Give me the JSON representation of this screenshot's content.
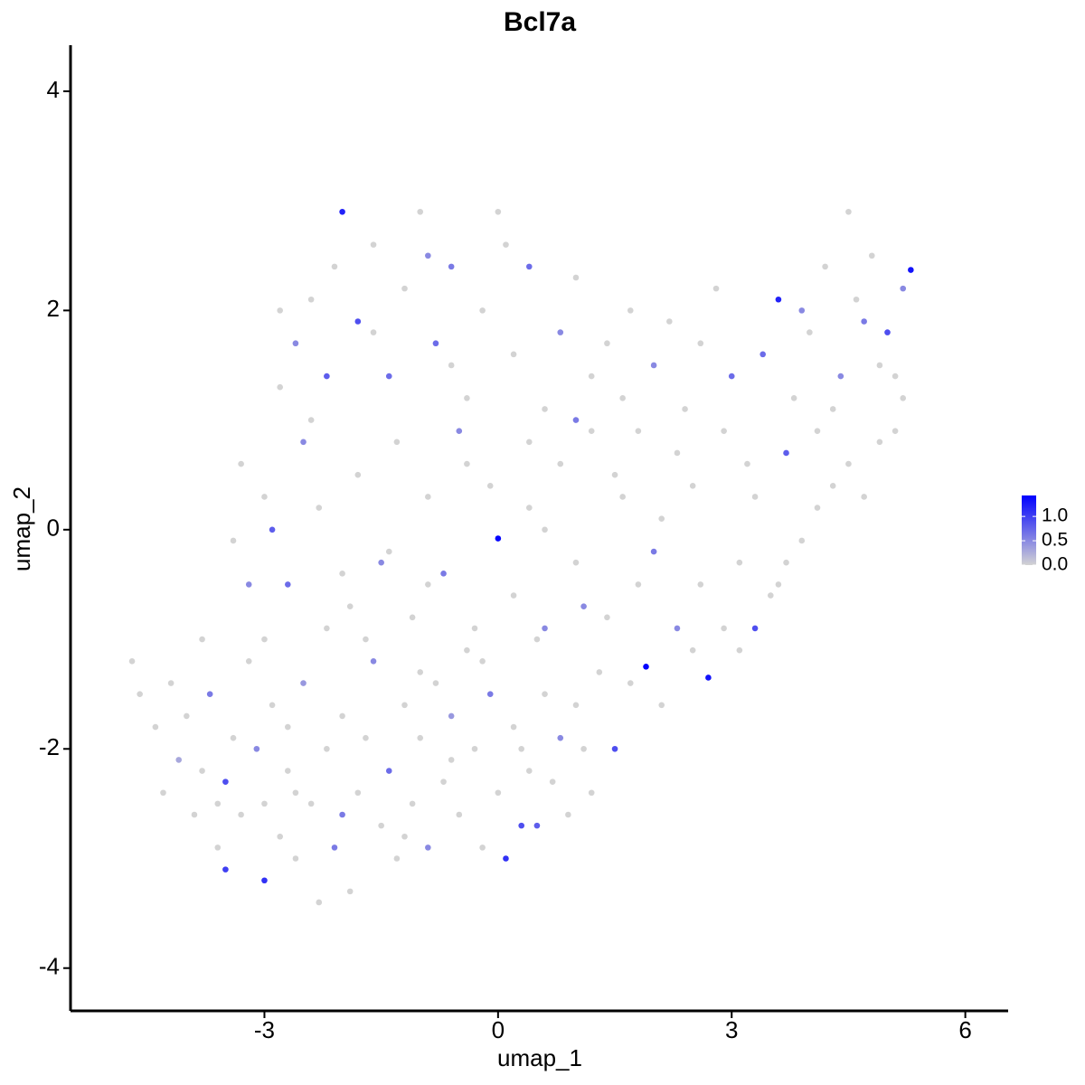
{
  "chart_data": {
    "type": "scatter",
    "title": "Bcl7a",
    "x_label": "umap_1",
    "y_label": "umap_2",
    "xlim": [
      -5.49,
      6.55
    ],
    "ylim": [
      -4.39,
      4.42
    ],
    "xticks": [
      -3,
      0,
      3,
      6
    ],
    "yticks": [
      -4,
      -2,
      0,
      2,
      4
    ],
    "colorbar": {
      "lim": [
        0,
        1.43
      ],
      "low": "#d3d3d3",
      "high": "#0000ff",
      "ticks": [
        {
          "value": 0,
          "label": "0.0"
        },
        {
          "value": 0.5,
          "label": "0.5"
        },
        {
          "value": 1,
          "label": "1.0"
        }
      ]
    },
    "x": [
      -4.7,
      -4.6,
      -4.4,
      -4.2,
      -4.1,
      -4.0,
      -3.9,
      -3.8,
      -3.7,
      -3.6,
      -3.5,
      -3.5,
      -3.4,
      -3.3,
      -3.2,
      -3.1,
      -3.0,
      -3.0,
      -2.9,
      -2.8,
      -2.7,
      -2.6,
      -2.5,
      -2.4,
      -2.3,
      -2.2,
      -2.1,
      -2.0,
      -1.9,
      -1.8,
      -1.7,
      -1.6,
      -1.5,
      -1.4,
      -1.3,
      -1.2,
      -1.1,
      -1.0,
      -0.9,
      -0.8,
      -0.7,
      -0.6,
      -0.5,
      -0.4,
      -0.3,
      -0.2,
      -0.1,
      0.0,
      0.1,
      0.2,
      0.3,
      0.4,
      0.5,
      0.6,
      0.7,
      0.8,
      0.9,
      1.0,
      1.1,
      1.3,
      1.5,
      1.7,
      1.9,
      2.1,
      2.3,
      2.5,
      2.7,
      2.9,
      3.1,
      3.3,
      3.5,
      3.7,
      3.9,
      4.1,
      4.3,
      4.5,
      4.7,
      4.9,
      5.1,
      5.2,
      -3.2,
      -3.4,
      -3.0,
      -2.9,
      -2.7,
      -2.5,
      -2.8,
      -2.6,
      -2.4,
      -2.2,
      -2.1,
      -2.0,
      -1.8,
      -1.6,
      -1.4,
      -1.2,
      -1.0,
      -0.8,
      -0.6,
      -0.4,
      -0.2,
      0.0,
      0.2,
      0.4,
      0.6,
      0.8,
      1.0,
      1.2,
      -2.3,
      -2.0,
      -1.8,
      -1.5,
      -1.3,
      -1.1,
      -0.9,
      -0.7,
      -0.5,
      -0.3,
      -0.1,
      0.0,
      0.2,
      0.4,
      0.6,
      0.8,
      1.0,
      1.2,
      1.4,
      1.6,
      1.8,
      2.0,
      -1.7,
      -1.0,
      -0.2,
      0.5,
      1.1,
      -2.2,
      -2.7,
      -3.8,
      -1.9,
      1.4,
      1.6,
      1.8,
      2.0,
      2.2,
      2.4,
      2.6,
      2.8,
      3.0,
      3.2,
      3.4,
      3.6,
      3.8,
      4.0,
      4.2,
      4.4,
      4.5,
      4.6,
      4.8,
      5.0,
      5.2,
      5.3,
      4.9,
      4.1,
      3.7,
      3.3,
      2.9,
      2.5,
      2.1,
      3.1,
      3.6,
      4.3,
      4.7,
      3.9,
      5.1,
      -2.6,
      -3.6,
      -2.0,
      -1.2,
      -0.6,
      0.3,
      1.2,
      -4.3,
      -3.0,
      -1.4,
      -0.4,
      0.6,
      1.5,
      -2.4,
      -1.6,
      -0.6,
      0.4,
      1.0,
      -3.3,
      -0.9,
      2.6,
      2.3,
      1.7,
      0.1,
      -0.9,
      -2.8
    ],
    "values": [
      -1.2,
      -1.5,
      -1.8,
      -1.4,
      -2.1,
      -1.7,
      -2.6,
      -2.2,
      -1.5,
      -2.9,
      -2.3,
      -3.1,
      -1.9,
      -2.6,
      -1.2,
      -2.0,
      -3.2,
      -2.5,
      -1.6,
      -2.8,
      -2.2,
      -3.0,
      -1.4,
      -2.5,
      -3.4,
      -2.0,
      -2.9,
      -1.7,
      -3.3,
      -2.4,
      -1.9,
      -1.2,
      -2.7,
      -2.2,
      -3.0,
      -1.6,
      -2.5,
      -1.9,
      -2.9,
      -1.4,
      -2.3,
      -1.7,
      -2.6,
      -1.1,
      -2.0,
      -2.9,
      -1.5,
      -2.4,
      -3.0,
      -1.8,
      -2.7,
      -2.2,
      -2.7,
      -1.5,
      -2.3,
      -1.9,
      -2.6,
      -1.6,
      -2.0,
      -1.3,
      -2.0,
      -1.4,
      -1.25,
      -1.6,
      -0.9,
      -1.1,
      -1.35,
      -0.9,
      -1.1,
      -0.9,
      -0.6,
      -0.3,
      -0.1,
      0.2,
      0.4,
      0.6,
      0.3,
      0.8,
      0.9,
      1.2,
      -0.5,
      -0.1,
      0.3,
      0.0,
      -0.5,
      0.8,
      1.3,
      1.7,
      2.1,
      1.4,
      2.4,
      2.9,
      1.9,
      2.6,
      1.4,
      2.2,
      2.9,
      1.7,
      2.4,
      1.2,
      2.0,
      2.9,
      1.6,
      2.4,
      1.1,
      1.8,
      2.3,
      1.4,
      0.2,
      -0.4,
      0.5,
      -0.3,
      0.8,
      -0.8,
      0.3,
      -0.4,
      0.9,
      -0.9,
      0.4,
      -0.08,
      -0.6,
      0.2,
      -0.9,
      0.6,
      -0.3,
      0.9,
      -0.8,
      0.3,
      -0.5,
      -0.2,
      -1.0,
      -1.3,
      -1.2,
      -1.0,
      -0.7,
      -0.9,
      -1.8,
      -1.0,
      -0.7,
      1.7,
      1.2,
      0.9,
      1.5,
      1.9,
      1.1,
      1.7,
      2.2,
      1.4,
      0.6,
      1.6,
      2.1,
      1.2,
      1.8,
      2.4,
      1.4,
      2.9,
      2.1,
      2.5,
      1.8,
      2.2,
      2.37,
      1.5,
      0.9,
      0.7,
      0.3,
      0.9,
      0.4,
      0.1,
      -0.3,
      -0.5,
      1.1,
      1.9,
      2.0,
      1.4,
      -2.4,
      -2.5,
      -2.6,
      -2.8,
      -2.1,
      -2.0,
      -2.4,
      -2.4,
      -1.0,
      -0.2,
      0.6,
      0.0,
      0.5,
      1.0,
      1.8,
      1.5,
      0.8,
      1.0,
      0.6,
      -0.5,
      -0.5,
      0.7,
      2.0,
      2.6,
      2.5,
      2.0
    ],
    "color_values": [
      0,
      0,
      0,
      0,
      0.3,
      0,
      0,
      0,
      0.6,
      0,
      0.9,
      1.0,
      0,
      0,
      0,
      0.5,
      1.1,
      0,
      0,
      0,
      0,
      0,
      0.4,
      0,
      0,
      0,
      0.6,
      0,
      0,
      0,
      0,
      0.5,
      0,
      0.7,
      0,
      0,
      0,
      0,
      0.5,
      0,
      0,
      0.4,
      0,
      0,
      0,
      0,
      0.6,
      0,
      1.1,
      0,
      0.9,
      0,
      0.8,
      0,
      0,
      0.5,
      0,
      0,
      0,
      0,
      0.9,
      0,
      1.4,
      0,
      0.5,
      0,
      1.3,
      0,
      0,
      0.9,
      0,
      0,
      0,
      0,
      0,
      0,
      0,
      0,
      0,
      0,
      0.5,
      0,
      0,
      0.8,
      0.7,
      0.5,
      0,
      0.5,
      0,
      0.8,
      0,
      1.2,
      0.9,
      0,
      0.7,
      0,
      0,
      0.7,
      0.6,
      0,
      0,
      0,
      0,
      0.7,
      0,
      0.5,
      0,
      0,
      0,
      0,
      0,
      0.5,
      0,
      0,
      0,
      0.6,
      0.5,
      0,
      0,
      1.4,
      0,
      0,
      0.5,
      0,
      0,
      0,
      0,
      0,
      0,
      0.6,
      0,
      0,
      0,
      0,
      0.5,
      0,
      0,
      0,
      0,
      0,
      0,
      0,
      0.5,
      0,
      0,
      0,
      0,
      0.7,
      0,
      0.7,
      1.2,
      0,
      0,
      0,
      0.5,
      0,
      0,
      0,
      0.9,
      0.5,
      1.3,
      0,
      0,
      0.8,
      0,
      0,
      0,
      0,
      0,
      0,
      0,
      0.6,
      0.5,
      0,
      0,
      0,
      0.6,
      0,
      0,
      0,
      0,
      0,
      0,
      0,
      0,
      0,
      0,
      0,
      0,
      0,
      0,
      0.6,
      0,
      0,
      0,
      0,
      0,
      0,
      0.5,
      0
    ]
  }
}
